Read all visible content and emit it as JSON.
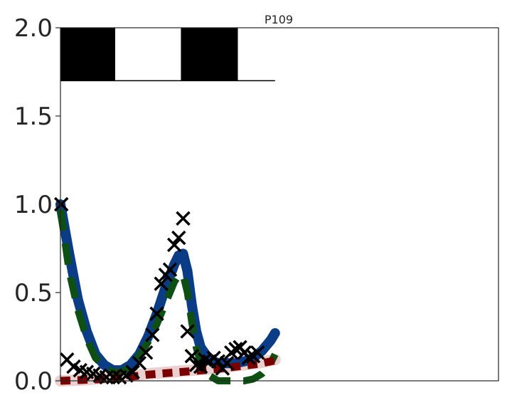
{
  "chart_data": {
    "type": "line",
    "title": "P109",
    "xlabel": "",
    "ylabel": "",
    "xlim": [
      0,
      100
    ],
    "ylim": [
      0,
      2.0
    ],
    "y_ticks": [
      "0.0",
      "0.5",
      "1.0",
      "1.5",
      "2.0"
    ],
    "grid": false,
    "legend": "none",
    "light_schedule": {
      "y_bottom": 1.7,
      "y_top": 2.0,
      "dark_periods": [
        [
          0,
          12.5
        ],
        [
          27.5,
          40.5
        ]
      ],
      "x_end": 49
    },
    "series": [
      {
        "style": "solid-thick",
        "color": "#0b3d86",
        "x": [
          0,
          2,
          4,
          6,
          8,
          10,
          12,
          14,
          16,
          18,
          20,
          22,
          24,
          26,
          27,
          28,
          29,
          30,
          31,
          32,
          34,
          36,
          38,
          40,
          42,
          44,
          46,
          48,
          49
        ],
        "y": [
          1.0,
          0.72,
          0.46,
          0.28,
          0.15,
          0.09,
          0.06,
          0.06,
          0.09,
          0.15,
          0.25,
          0.38,
          0.53,
          0.66,
          0.71,
          0.72,
          0.62,
          0.43,
          0.28,
          0.19,
          0.12,
          0.1,
          0.1,
          0.1,
          0.11,
          0.13,
          0.17,
          0.23,
          0.27
        ]
      },
      {
        "style": "dashed",
        "color": "#0e5014",
        "x": [
          0,
          2,
          4,
          6,
          8,
          10,
          12,
          14,
          16,
          18,
          20,
          22,
          24,
          26,
          27,
          28,
          29,
          30,
          31,
          32,
          34,
          36,
          38,
          40,
          42,
          44,
          46,
          48,
          49
        ],
        "y": [
          0.97,
          0.62,
          0.4,
          0.24,
          0.13,
          0.08,
          0.05,
          0.05,
          0.08,
          0.14,
          0.22,
          0.32,
          0.44,
          0.56,
          0.6,
          0.6,
          0.5,
          0.33,
          0.19,
          0.1,
          0.03,
          0.0,
          0.0,
          0.0,
          0.0,
          0.01,
          0.04,
          0.1,
          0.15
        ]
      },
      {
        "style": "dashed",
        "color": "#7a0000",
        "x": [
          0,
          5,
          10,
          15,
          20,
          25,
          30,
          35,
          40,
          45,
          49
        ],
        "y": [
          0.0,
          0.005,
          0.01,
          0.02,
          0.035,
          0.045,
          0.055,
          0.065,
          0.08,
          0.095,
          0.115
        ]
      },
      {
        "style": "band",
        "color": "#e6c4c4",
        "x": [
          0,
          5,
          10,
          15,
          20,
          25,
          30,
          35,
          40,
          45,
          49
        ],
        "y": [
          0.0,
          0.005,
          0.015,
          0.025,
          0.04,
          0.05,
          0.06,
          0.07,
          0.085,
          0.1,
          0.12
        ]
      }
    ],
    "observations": {
      "marker": "x",
      "color": "#000000",
      "x": [
        0.2,
        1.5,
        3,
        4.5,
        6,
        7.5,
        9,
        10.5,
        12,
        13.5,
        15,
        16.5,
        18,
        19.5,
        21,
        22,
        23,
        24,
        25,
        26,
        27,
        28,
        29,
        30,
        31,
        32,
        33,
        34,
        35,
        36,
        37,
        38,
        39,
        40,
        41,
        42,
        43,
        44,
        45
      ],
      "y": [
        1.0,
        0.12,
        0.08,
        0.06,
        0.05,
        0.04,
        0.03,
        0.02,
        0.02,
        0.02,
        0.03,
        0.05,
        0.1,
        0.16,
        0.26,
        0.38,
        0.55,
        0.6,
        0.63,
        0.77,
        0.81,
        0.92,
        0.28,
        0.14,
        0.09,
        0.08,
        0.12,
        0.11,
        0.13,
        0.11,
        0.07,
        0.1,
        0.16,
        0.18,
        0.19,
        0.16,
        0.13,
        0.14,
        0.16
      ]
    }
  }
}
